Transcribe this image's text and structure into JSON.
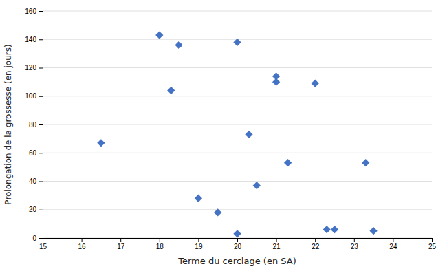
{
  "chart_data": {
    "type": "scatter",
    "x": [
      16.5,
      18.0,
      18.3,
      18.5,
      19.0,
      19.5,
      20.0,
      20.0,
      20.3,
      20.5,
      21.0,
      21.0,
      21.3,
      22.0,
      22.3,
      22.5,
      23.3,
      23.5
    ],
    "values": [
      67,
      143,
      104,
      136,
      28,
      18,
      138,
      3,
      73,
      37,
      114,
      110,
      53,
      109,
      6,
      6,
      53,
      5
    ],
    "xlabel": "Terme du cerclage (en SA)",
    "ylabel": "Prolongation de la grossesse (en jours)",
    "xlim": [
      15,
      25
    ],
    "ylim": [
      0,
      160
    ],
    "xticks": [
      15,
      16,
      17,
      18,
      19,
      20,
      21,
      22,
      23,
      24,
      25
    ],
    "yticks": [
      0,
      20,
      40,
      60,
      80,
      100,
      120,
      140,
      160
    ],
    "color": "#4472C4",
    "marker": "diamond",
    "grid": "y"
  }
}
